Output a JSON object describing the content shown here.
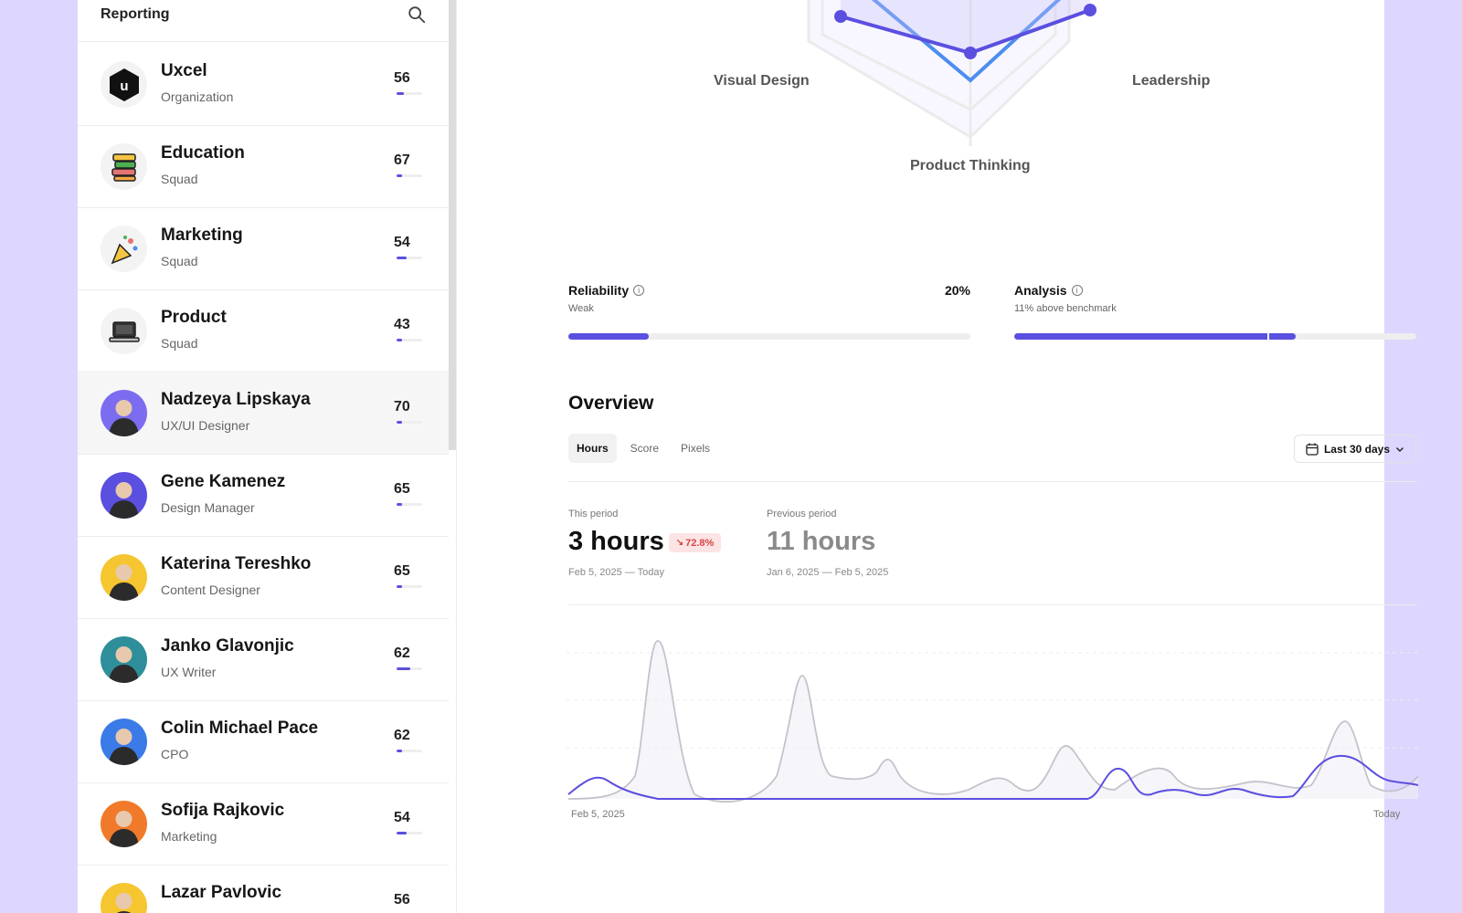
{
  "sidebar": {
    "title": "Reporting",
    "search_icon": "search-icon",
    "items": [
      {
        "name": "Uxcel",
        "subtitle": "Organization",
        "score": "56",
        "progress": 0.28,
        "avatar": "uxcel-logo-icon"
      },
      {
        "name": "Education",
        "subtitle": "Squad",
        "score": "67",
        "progress": 0.2,
        "avatar": "books-icon"
      },
      {
        "name": "Marketing",
        "subtitle": "Squad",
        "score": "54",
        "progress": 0.4,
        "avatar": "party-popper-icon"
      },
      {
        "name": "Product",
        "subtitle": "Squad",
        "score": "43",
        "progress": 0.2,
        "avatar": "laptop-icon"
      },
      {
        "name": "Nadzeya Lipskaya",
        "subtitle": "UX/UI Designer",
        "score": "70",
        "progress": 0.2,
        "avatar": "avatar",
        "avatar_color": "#7c6cf0"
      },
      {
        "name": "Gene Kamenez",
        "subtitle": "Design Manager",
        "score": "65",
        "progress": 0.2,
        "avatar": "avatar",
        "avatar_color": "#5b4fe0"
      },
      {
        "name": "Katerina Tereshko",
        "subtitle": "Content Designer",
        "score": "65",
        "progress": 0.2,
        "avatar": "avatar",
        "avatar_color": "#f5c630"
      },
      {
        "name": "Janko Glavonjic",
        "subtitle": "UX Writer",
        "score": "62",
        "progress": 0.55,
        "avatar": "avatar",
        "avatar_color": "#2e8f9a"
      },
      {
        "name": "Colin Michael Pace",
        "subtitle": "CPO",
        "score": "62",
        "progress": 0.2,
        "avatar": "avatar",
        "avatar_color": "#3b7be8"
      },
      {
        "name": "Sofija Rajkovic",
        "subtitle": "Marketing",
        "score": "54",
        "progress": 0.4,
        "avatar": "avatar",
        "avatar_color": "#f07a2a"
      },
      {
        "name": "Lazar Pavlovic",
        "subtitle": "",
        "score": "56",
        "progress": 0.2,
        "avatar": "avatar",
        "avatar_color": "#f5c630"
      }
    ]
  },
  "radar": {
    "labels": [
      "Visual Design",
      "Leadership",
      "Product Thinking"
    ]
  },
  "metrics": {
    "reliability": {
      "title": "Reliability",
      "subtitle": "Weak",
      "value": "20%",
      "progress": 0.2
    },
    "analysis": {
      "title": "Analysis",
      "subtitle": "11% above benchmark",
      "progress": 0.7,
      "benchmark": 0.63
    }
  },
  "overview": {
    "title": "Overview",
    "tabs": [
      "Hours",
      "Score",
      "Pixels"
    ],
    "active_tab": "Hours",
    "date_range": "Last 30 days",
    "this_period": {
      "label": "This period",
      "value": "3 hours",
      "change": "72.8%",
      "dates": "Feb 5, 2025 — Today"
    },
    "previous_period": {
      "label": "Previous period",
      "value": "11 hours",
      "dates": "Jan 6, 2025 — Feb 5, 2025"
    },
    "x_start": "Feb 5, 2025",
    "x_end": "Today"
  },
  "colors": {
    "accent": "#5b4fe0",
    "radar_blue": "#4c8df0",
    "background": "#ddd6fe",
    "negative": "#d64545"
  }
}
